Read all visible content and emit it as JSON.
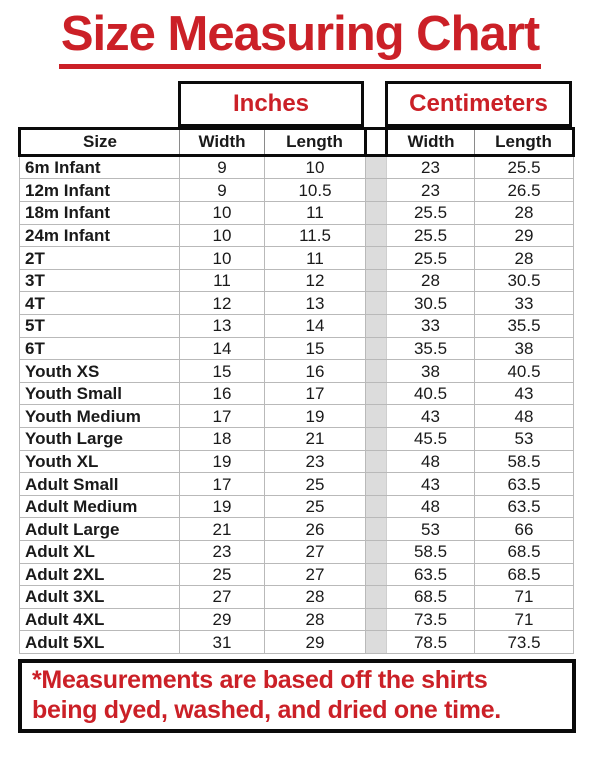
{
  "page": {
    "title": "Size Measuring Chart"
  },
  "colors": {
    "accent_red": "#cb2027",
    "border_black": "#0a0a0a",
    "grid_grey": "#b9b9b9",
    "gap_fill": "#dcdcdc"
  },
  "chart_data": {
    "type": "table",
    "title": "Size Measuring Chart",
    "column_groups": [
      "Inches",
      "Centimeters"
    ],
    "columns": [
      "Size",
      "Width",
      "Length",
      "Width",
      "Length"
    ],
    "rows": [
      {
        "size": "6m Infant",
        "inches_width": 9,
        "inches_length": 10,
        "cm_width": 23,
        "cm_length": 25.5
      },
      {
        "size": "12m Infant",
        "inches_width": 9,
        "inches_length": 10.5,
        "cm_width": 23,
        "cm_length": 26.5
      },
      {
        "size": "18m Infant",
        "inches_width": 10,
        "inches_length": 11,
        "cm_width": 25.5,
        "cm_length": 28
      },
      {
        "size": "24m Infant",
        "inches_width": 10,
        "inches_length": 11.5,
        "cm_width": 25.5,
        "cm_length": 29
      },
      {
        "size": "2T",
        "inches_width": 10,
        "inches_length": 11,
        "cm_width": 25.5,
        "cm_length": 28
      },
      {
        "size": "3T",
        "inches_width": 11,
        "inches_length": 12,
        "cm_width": 28,
        "cm_length": 30.5
      },
      {
        "size": "4T",
        "inches_width": 12,
        "inches_length": 13,
        "cm_width": 30.5,
        "cm_length": 33
      },
      {
        "size": "5T",
        "inches_width": 13,
        "inches_length": 14,
        "cm_width": 33,
        "cm_length": 35.5
      },
      {
        "size": "6T",
        "inches_width": 14,
        "inches_length": 15,
        "cm_width": 35.5,
        "cm_length": 38
      },
      {
        "size": "Youth XS",
        "inches_width": 15,
        "inches_length": 16,
        "cm_width": 38,
        "cm_length": 40.5
      },
      {
        "size": "Youth Small",
        "inches_width": 16,
        "inches_length": 17,
        "cm_width": 40.5,
        "cm_length": 43
      },
      {
        "size": "Youth Medium",
        "inches_width": 17,
        "inches_length": 19,
        "cm_width": 43,
        "cm_length": 48
      },
      {
        "size": "Youth Large",
        "inches_width": 18,
        "inches_length": 21,
        "cm_width": 45.5,
        "cm_length": 53
      },
      {
        "size": "Youth XL",
        "inches_width": 19,
        "inches_length": 23,
        "cm_width": 48,
        "cm_length": 58.5
      },
      {
        "size": "Adult Small",
        "inches_width": 17,
        "inches_length": 25,
        "cm_width": 43,
        "cm_length": 63.5
      },
      {
        "size": "Adult Medium",
        "inches_width": 19,
        "inches_length": 25,
        "cm_width": 48,
        "cm_length": 63.5
      },
      {
        "size": "Adult Large",
        "inches_width": 21,
        "inches_length": 26,
        "cm_width": 53,
        "cm_length": 66
      },
      {
        "size": "Adult XL",
        "inches_width": 23,
        "inches_length": 27,
        "cm_width": 58.5,
        "cm_length": 68.5
      },
      {
        "size": "Adult 2XL",
        "inches_width": 25,
        "inches_length": 27,
        "cm_width": 63.5,
        "cm_length": 68.5
      },
      {
        "size": "Adult 3XL",
        "inches_width": 27,
        "inches_length": 28,
        "cm_width": 68.5,
        "cm_length": 71
      },
      {
        "size": "Adult 4XL",
        "inches_width": 29,
        "inches_length": 28,
        "cm_width": 73.5,
        "cm_length": 71
      },
      {
        "size": "Adult 5XL",
        "inches_width": 31,
        "inches_length": 29,
        "cm_width": 78.5,
        "cm_length": 73.5
      }
    ],
    "footnote_lines": [
      "*Measurements are based off the shirts",
      "being dyed, washed, and dried one time."
    ]
  }
}
